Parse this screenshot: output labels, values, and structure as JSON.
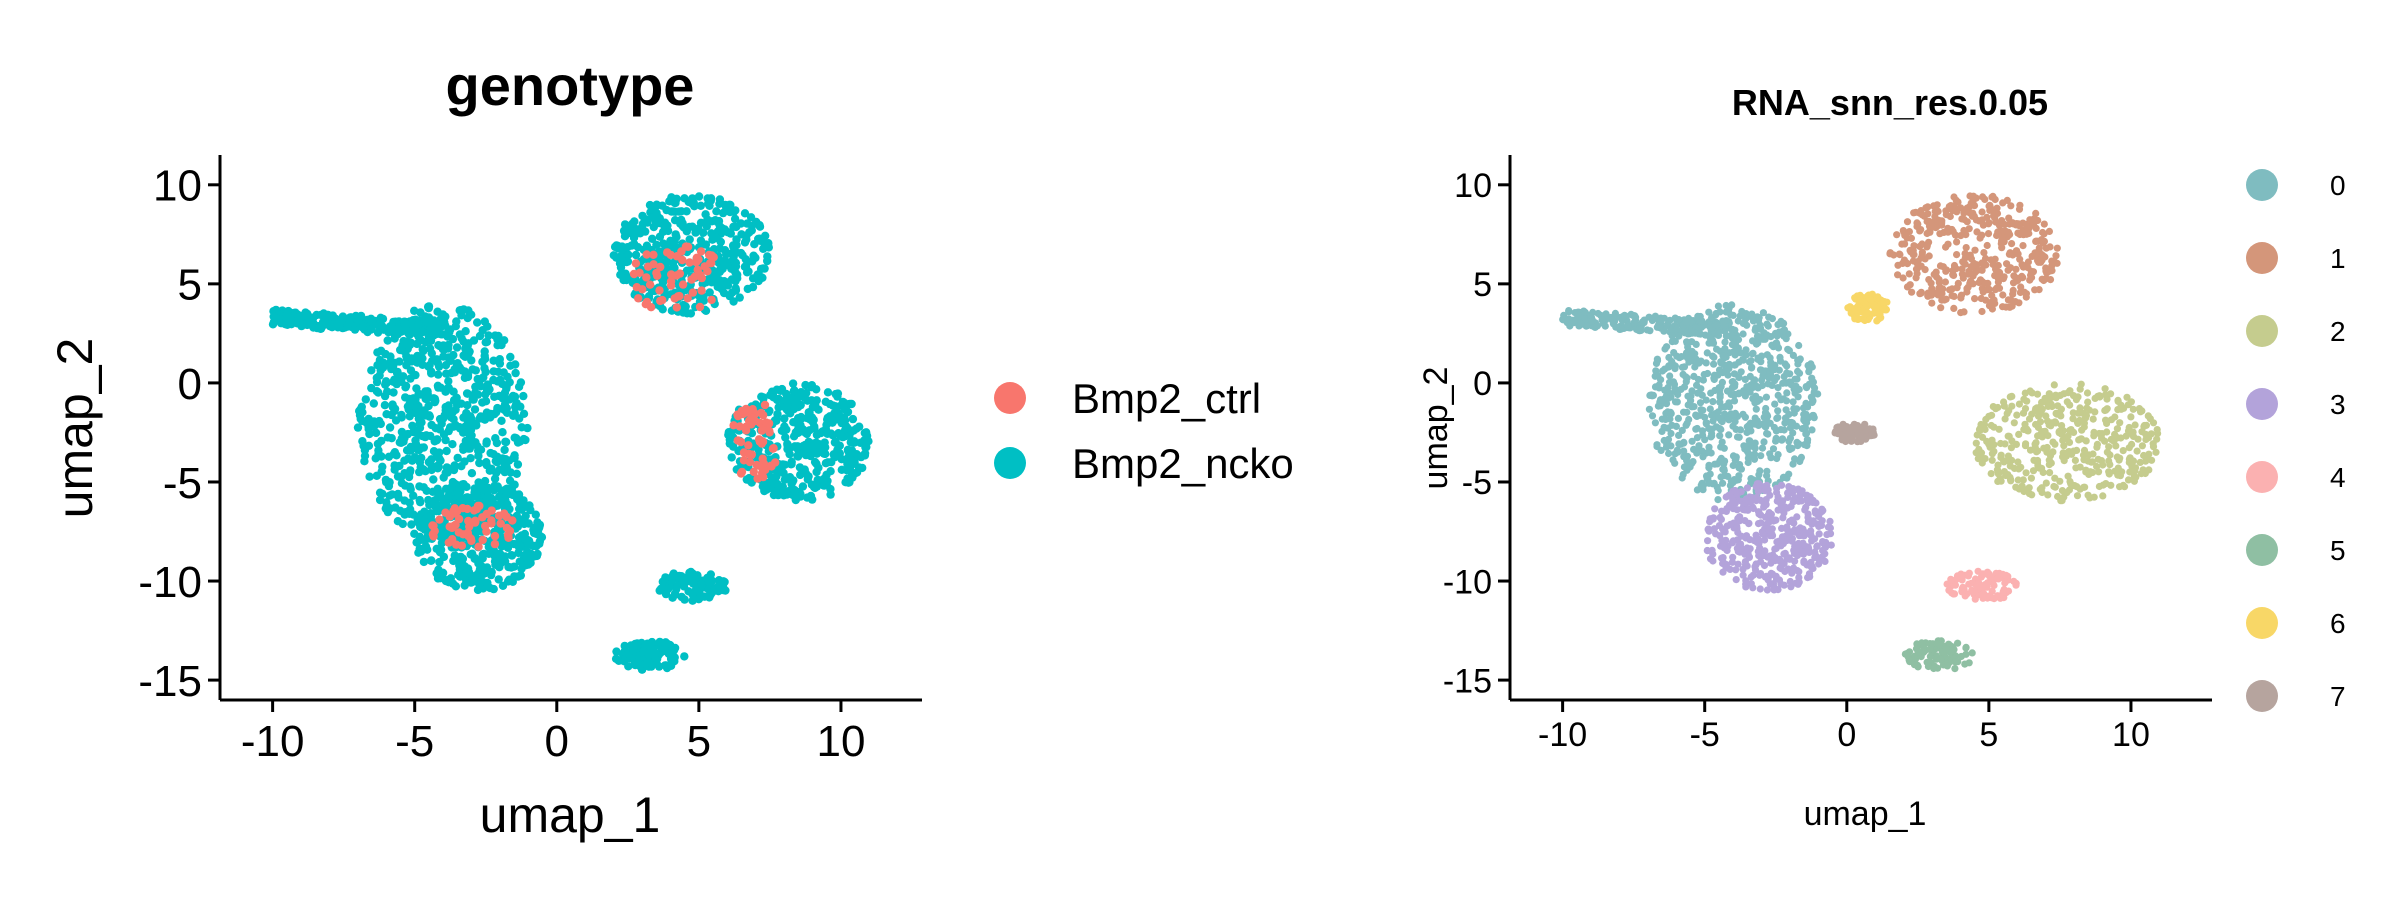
{
  "chart_data": [
    {
      "type": "scatter",
      "title": "genotype",
      "xlabel": "umap_1",
      "ylabel": "umap_2",
      "xlim": [
        -11.5,
        12.5
      ],
      "ylim": [
        -15.5,
        11
      ],
      "xticks": [
        -10,
        -5,
        0,
        5,
        10
      ],
      "xtick_labels": [
        "-10",
        "-5",
        "0",
        "5",
        "10"
      ],
      "yticks": [
        10,
        5,
        0,
        -5,
        -10,
        -15
      ],
      "ytick_labels": [
        "10",
        "5",
        "0",
        "-5",
        "-10",
        "-15"
      ],
      "grid": false,
      "legend_position": "right",
      "series": [
        {
          "name": "Bmp2_ctrl",
          "color": "#F8766D"
        },
        {
          "name": "Bmp2_ncko",
          "color": "#00BFC4"
        }
      ],
      "regions": [
        {
          "series": "Bmp2_ncko",
          "x_range": [
            -10,
            -4
          ],
          "y_range": [
            2,
            4
          ],
          "shape": "band"
        },
        {
          "series": "Bmp2_ncko",
          "x_range": [
            -7,
            -1
          ],
          "y_range": [
            -8,
            4
          ],
          "shape": "mass"
        },
        {
          "series": "Bmp2_ncko",
          "x_range": [
            2,
            7.5
          ],
          "y_range": [
            3.5,
            9.5
          ],
          "shape": "cluster"
        },
        {
          "series": "Bmp2_ncko",
          "x_range": [
            6,
            11
          ],
          "y_range": [
            -6,
            0
          ],
          "shape": "cluster"
        },
        {
          "series": "Bmp2_ncko",
          "x_range": [
            -5,
            -0.5
          ],
          "y_range": [
            -10.5,
            -5
          ],
          "shape": "cluster"
        },
        {
          "series": "Bmp2_ncko",
          "x_range": [
            3.5,
            6
          ],
          "y_range": [
            -11,
            -9.5
          ],
          "shape": "small"
        },
        {
          "series": "Bmp2_ncko",
          "x_range": [
            2,
            4.5
          ],
          "y_range": [
            -14.5,
            -13
          ],
          "shape": "small"
        },
        {
          "series": "Bmp2_ctrl",
          "x_range": [
            2.5,
            6
          ],
          "y_range": [
            3.5,
            7
          ],
          "shape": "sparse"
        },
        {
          "series": "Bmp2_ctrl",
          "x_range": [
            -4.5,
            -1.5
          ],
          "y_range": [
            -8.5,
            -6
          ],
          "shape": "sparse"
        },
        {
          "series": "Bmp2_ctrl",
          "x_range": [
            6,
            8
          ],
          "y_range": [
            -5,
            -1
          ],
          "shape": "sparse"
        }
      ]
    },
    {
      "type": "scatter",
      "title": "RNA_snn_res.0.05",
      "xlabel": "umap_1",
      "ylabel": "umap_2",
      "xlim": [
        -11.5,
        12.5
      ],
      "ylim": [
        -15.5,
        11
      ],
      "xticks": [
        -10,
        -5,
        0,
        5,
        10
      ],
      "xtick_labels": [
        "-10",
        "-5",
        "0",
        "5",
        "10"
      ],
      "yticks": [
        10,
        5,
        0,
        -5,
        -10,
        -15
      ],
      "ytick_labels": [
        "10",
        "5",
        "0",
        "-5",
        "-10",
        "-15"
      ],
      "grid": false,
      "legend_position": "right",
      "series": [
        {
          "name": "0",
          "color": "#7FBCC0"
        },
        {
          "name": "1",
          "color": "#D4967A"
        },
        {
          "name": "2",
          "color": "#C5CC8E"
        },
        {
          "name": "3",
          "color": "#B3A3DA"
        },
        {
          "name": "4",
          "color": "#FBB1B1"
        },
        {
          "name": "5",
          "color": "#8FBFA3"
        },
        {
          "name": "6",
          "color": "#F8D767"
        },
        {
          "name": "7",
          "color": "#B6A49E"
        }
      ],
      "regions": [
        {
          "series": "0",
          "x_range": [
            -10,
            -4
          ],
          "y_range": [
            2,
            4
          ],
          "shape": "band"
        },
        {
          "series": "0",
          "x_range": [
            -7,
            -1
          ],
          "y_range": [
            -6,
            4
          ],
          "shape": "mass"
        },
        {
          "series": "1",
          "x_range": [
            1.5,
            7.5
          ],
          "y_range": [
            3.5,
            9.5
          ],
          "shape": "cluster"
        },
        {
          "series": "2",
          "x_range": [
            4.5,
            11
          ],
          "y_range": [
            -6,
            0
          ],
          "shape": "cluster"
        },
        {
          "series": "3",
          "x_range": [
            -5,
            -0.5
          ],
          "y_range": [
            -10.5,
            -5
          ],
          "shape": "cluster"
        },
        {
          "series": "4",
          "x_range": [
            3.5,
            6
          ],
          "y_range": [
            -11,
            -9.5
          ],
          "shape": "small"
        },
        {
          "series": "5",
          "x_range": [
            2,
            4.5
          ],
          "y_range": [
            -14.5,
            -13
          ],
          "shape": "small"
        },
        {
          "series": "6",
          "x_range": [
            0,
            1.5
          ],
          "y_range": [
            3,
            4.5
          ],
          "shape": "small"
        },
        {
          "series": "7",
          "x_range": [
            -0.5,
            1
          ],
          "y_range": [
            -3,
            -2
          ],
          "shape": "small"
        }
      ]
    }
  ]
}
